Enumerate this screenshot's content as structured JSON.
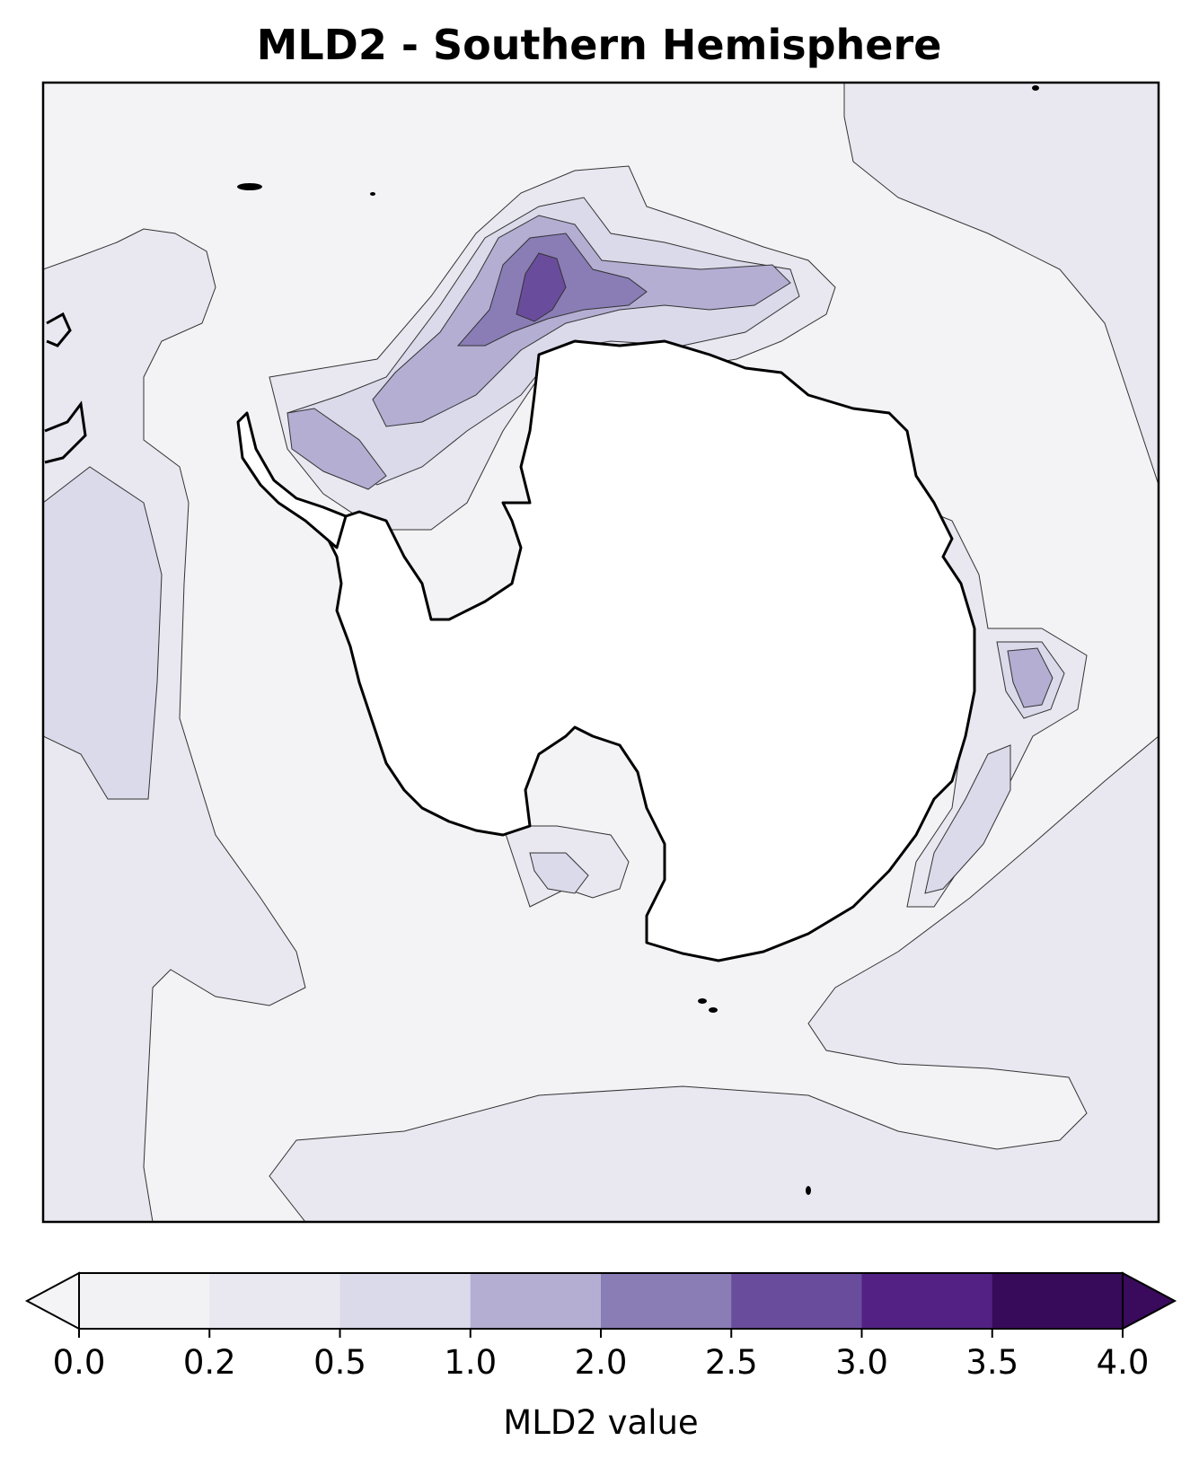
{
  "title": "MLD2 - Southern Hemisphere",
  "colorbar": {
    "label": "MLD2 value",
    "levels": [
      0.0,
      0.2,
      0.5,
      1.0,
      2.0,
      2.5,
      3.0,
      3.5,
      4.0
    ],
    "tick_labels": [
      "0.0",
      "0.2",
      "0.5",
      "1.0",
      "2.0",
      "2.5",
      "3.0",
      "3.5",
      "4.0"
    ],
    "colors": [
      "#f2f2f5",
      "#e9e8f1",
      "#dadaea",
      "#b4aed3",
      "#8a7db6",
      "#6a4c9c",
      "#522183",
      "#380a5a"
    ],
    "under_color": "#f4f4f7",
    "over_color": "#3a0a5c",
    "extend": "both"
  },
  "map": {
    "projection": "south polar stereographic",
    "background_color": "#f3f3f6",
    "land_color": "#ffffff",
    "coastline_color": "#000000"
  }
}
